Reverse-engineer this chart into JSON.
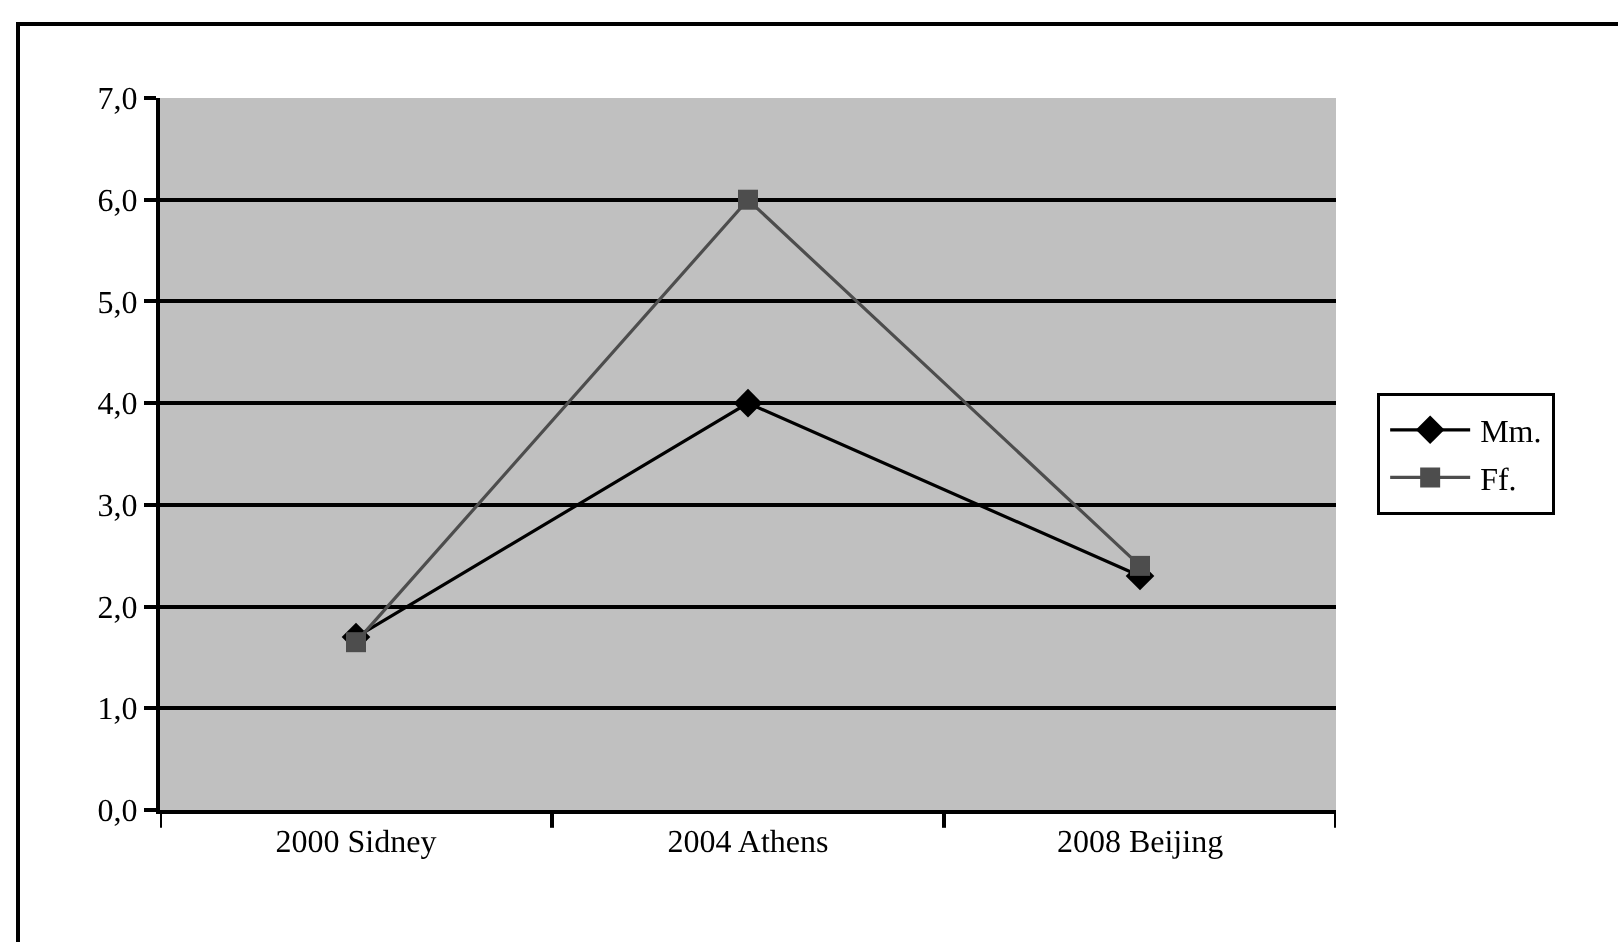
{
  "chart_data": {
    "type": "line",
    "categories": [
      "2000 Sidney",
      "2004 Athens",
      "2008 Beijing"
    ],
    "series": [
      {
        "name": "Mm.",
        "color": "#000000",
        "values": [
          1.7,
          4.0,
          2.3
        ],
        "marker": "diamond"
      },
      {
        "name": "Ff.",
        "color": "#4d4d4d",
        "values": [
          1.65,
          6.0,
          2.4
        ],
        "marker": "square"
      }
    ],
    "ylim": [
      0,
      7
    ],
    "yticks": [
      {
        "value": 0,
        "label": "0,0"
      },
      {
        "value": 1,
        "label": "1,0"
      },
      {
        "value": 2,
        "label": "2,0"
      },
      {
        "value": 3,
        "label": "3,0"
      },
      {
        "value": 4,
        "label": "4,0"
      },
      {
        "value": 5,
        "label": "5,0"
      },
      {
        "value": 6,
        "label": "6,0"
      },
      {
        "value": 7,
        "label": "7,0"
      }
    ],
    "grid": "y",
    "legend": "right",
    "line_style": "solid"
  }
}
